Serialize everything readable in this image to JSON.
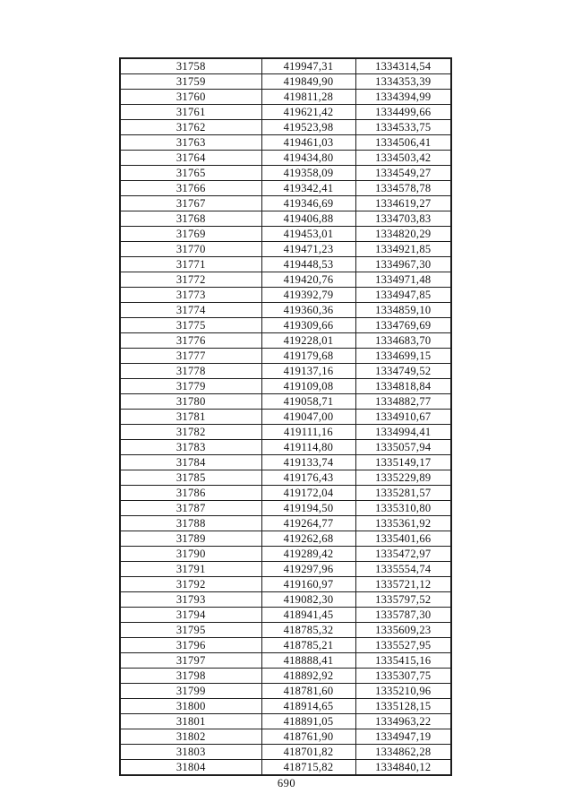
{
  "page_number": "690",
  "table": {
    "rows": [
      [
        "31758",
        "419947,31",
        "1334314,54"
      ],
      [
        "31759",
        "419849,90",
        "1334353,39"
      ],
      [
        "31760",
        "419811,28",
        "1334394,99"
      ],
      [
        "31761",
        "419621,42",
        "1334499,66"
      ],
      [
        "31762",
        "419523,98",
        "1334533,75"
      ],
      [
        "31763",
        "419461,03",
        "1334506,41"
      ],
      [
        "31764",
        "419434,80",
        "1334503,42"
      ],
      [
        "31765",
        "419358,09",
        "1334549,27"
      ],
      [
        "31766",
        "419342,41",
        "1334578,78"
      ],
      [
        "31767",
        "419346,69",
        "1334619,27"
      ],
      [
        "31768",
        "419406,88",
        "1334703,83"
      ],
      [
        "31769",
        "419453,01",
        "1334820,29"
      ],
      [
        "31770",
        "419471,23",
        "1334921,85"
      ],
      [
        "31771",
        "419448,53",
        "1334967,30"
      ],
      [
        "31772",
        "419420,76",
        "1334971,48"
      ],
      [
        "31773",
        "419392,79",
        "1334947,85"
      ],
      [
        "31774",
        "419360,36",
        "1334859,10"
      ],
      [
        "31775",
        "419309,66",
        "1334769,69"
      ],
      [
        "31776",
        "419228,01",
        "1334683,70"
      ],
      [
        "31777",
        "419179,68",
        "1334699,15"
      ],
      [
        "31778",
        "419137,16",
        "1334749,52"
      ],
      [
        "31779",
        "419109,08",
        "1334818,84"
      ],
      [
        "31780",
        "419058,71",
        "1334882,77"
      ],
      [
        "31781",
        "419047,00",
        "1334910,67"
      ],
      [
        "31782",
        "419111,16",
        "1334994,41"
      ],
      [
        "31783",
        "419114,80",
        "1335057,94"
      ],
      [
        "31784",
        "419133,74",
        "1335149,17"
      ],
      [
        "31785",
        "419176,43",
        "1335229,89"
      ],
      [
        "31786",
        "419172,04",
        "1335281,57"
      ],
      [
        "31787",
        "419194,50",
        "1335310,80"
      ],
      [
        "31788",
        "419264,77",
        "1335361,92"
      ],
      [
        "31789",
        "419262,68",
        "1335401,66"
      ],
      [
        "31790",
        "419289,42",
        "1335472,97"
      ],
      [
        "31791",
        "419297,96",
        "1335554,74"
      ],
      [
        "31792",
        "419160,97",
        "1335721,12"
      ],
      [
        "31793",
        "419082,30",
        "1335797,52"
      ],
      [
        "31794",
        "418941,45",
        "1335787,30"
      ],
      [
        "31795",
        "418785,32",
        "1335609,23"
      ],
      [
        "31796",
        "418785,21",
        "1335527,95"
      ],
      [
        "31797",
        "418888,41",
        "1335415,16"
      ],
      [
        "31798",
        "418892,92",
        "1335307,75"
      ],
      [
        "31799",
        "418781,60",
        "1335210,96"
      ],
      [
        "31800",
        "418914,65",
        "1335128,15"
      ],
      [
        "31801",
        "418891,05",
        "1334963,22"
      ],
      [
        "31802",
        "418761,90",
        "1334947,19"
      ],
      [
        "31803",
        "418701,82",
        "1334862,28"
      ],
      [
        "31804",
        "418715,82",
        "1334840,12"
      ]
    ]
  }
}
